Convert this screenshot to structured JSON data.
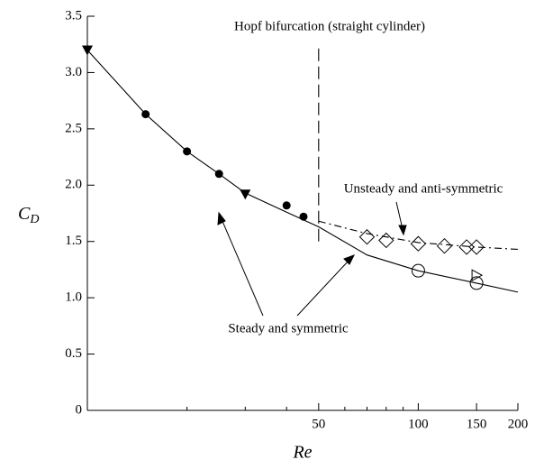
{
  "chart_data": {
    "type": "scatter",
    "xlabel": "Re",
    "ylabel": "C",
    "ylabel_sub": "D",
    "xscale": "log",
    "xlim": [
      10,
      200
    ],
    "xticks": [
      50,
      100,
      150,
      200
    ],
    "xminorticks": [
      20,
      30,
      40,
      60,
      70,
      80,
      90
    ],
    "ylim": [
      0,
      3.5
    ],
    "yticks": [
      0,
      0.5,
      {
        "value": 1,
        "label": "1.0"
      },
      1.5,
      {
        "value": 2,
        "label": "2.0"
      },
      2.5,
      {
        "value": 3,
        "label": "3.0"
      },
      3.5
    ],
    "annotations": [
      "Hopf bifurcation (straight cylinder)",
      "Unsteady and anti-symmetric",
      "Steady and symmetric"
    ],
    "lines": [
      {
        "style": "solid",
        "x": [
          10,
          15,
          20,
          25,
          30,
          40,
          50,
          70,
          100,
          150,
          200
        ],
        "values": [
          3.2,
          2.63,
          2.3,
          2.1,
          1.93,
          1.76,
          1.63,
          1.38,
          1.24,
          1.13,
          1.05
        ]
      },
      {
        "style": "dashdot",
        "x": [
          50,
          70,
          100,
          150,
          200
        ],
        "values": [
          1.68,
          1.57,
          1.49,
          1.45,
          1.43
        ]
      },
      {
        "style": "dashed",
        "x": [
          50,
          50
        ],
        "values": [
          1.5,
          3.26
        ]
      }
    ],
    "series": [
      {
        "marker": "filled-circle",
        "color": "#000000",
        "x": [
          15,
          20,
          25,
          40,
          45
        ],
        "values": [
          2.63,
          2.3,
          2.1,
          1.82,
          1.72
        ]
      },
      {
        "marker": "filled-down-triangle",
        "color": "#000000",
        "x": [
          10,
          30
        ],
        "values": [
          3.2,
          1.92
        ]
      },
      {
        "marker": "open-diamond",
        "color": "#000000",
        "x": [
          70,
          80,
          100,
          120,
          140,
          150
        ],
        "values": [
          1.54,
          1.51,
          1.48,
          1.46,
          1.45,
          1.45
        ]
      },
      {
        "marker": "open-circle",
        "color": "#000000",
        "x": [
          100,
          150
        ],
        "values": [
          1.24,
          1.13
        ]
      },
      {
        "marker": "open-right-triangle",
        "color": "#000000",
        "x": [
          150
        ],
        "values": [
          1.2
        ]
      }
    ]
  }
}
